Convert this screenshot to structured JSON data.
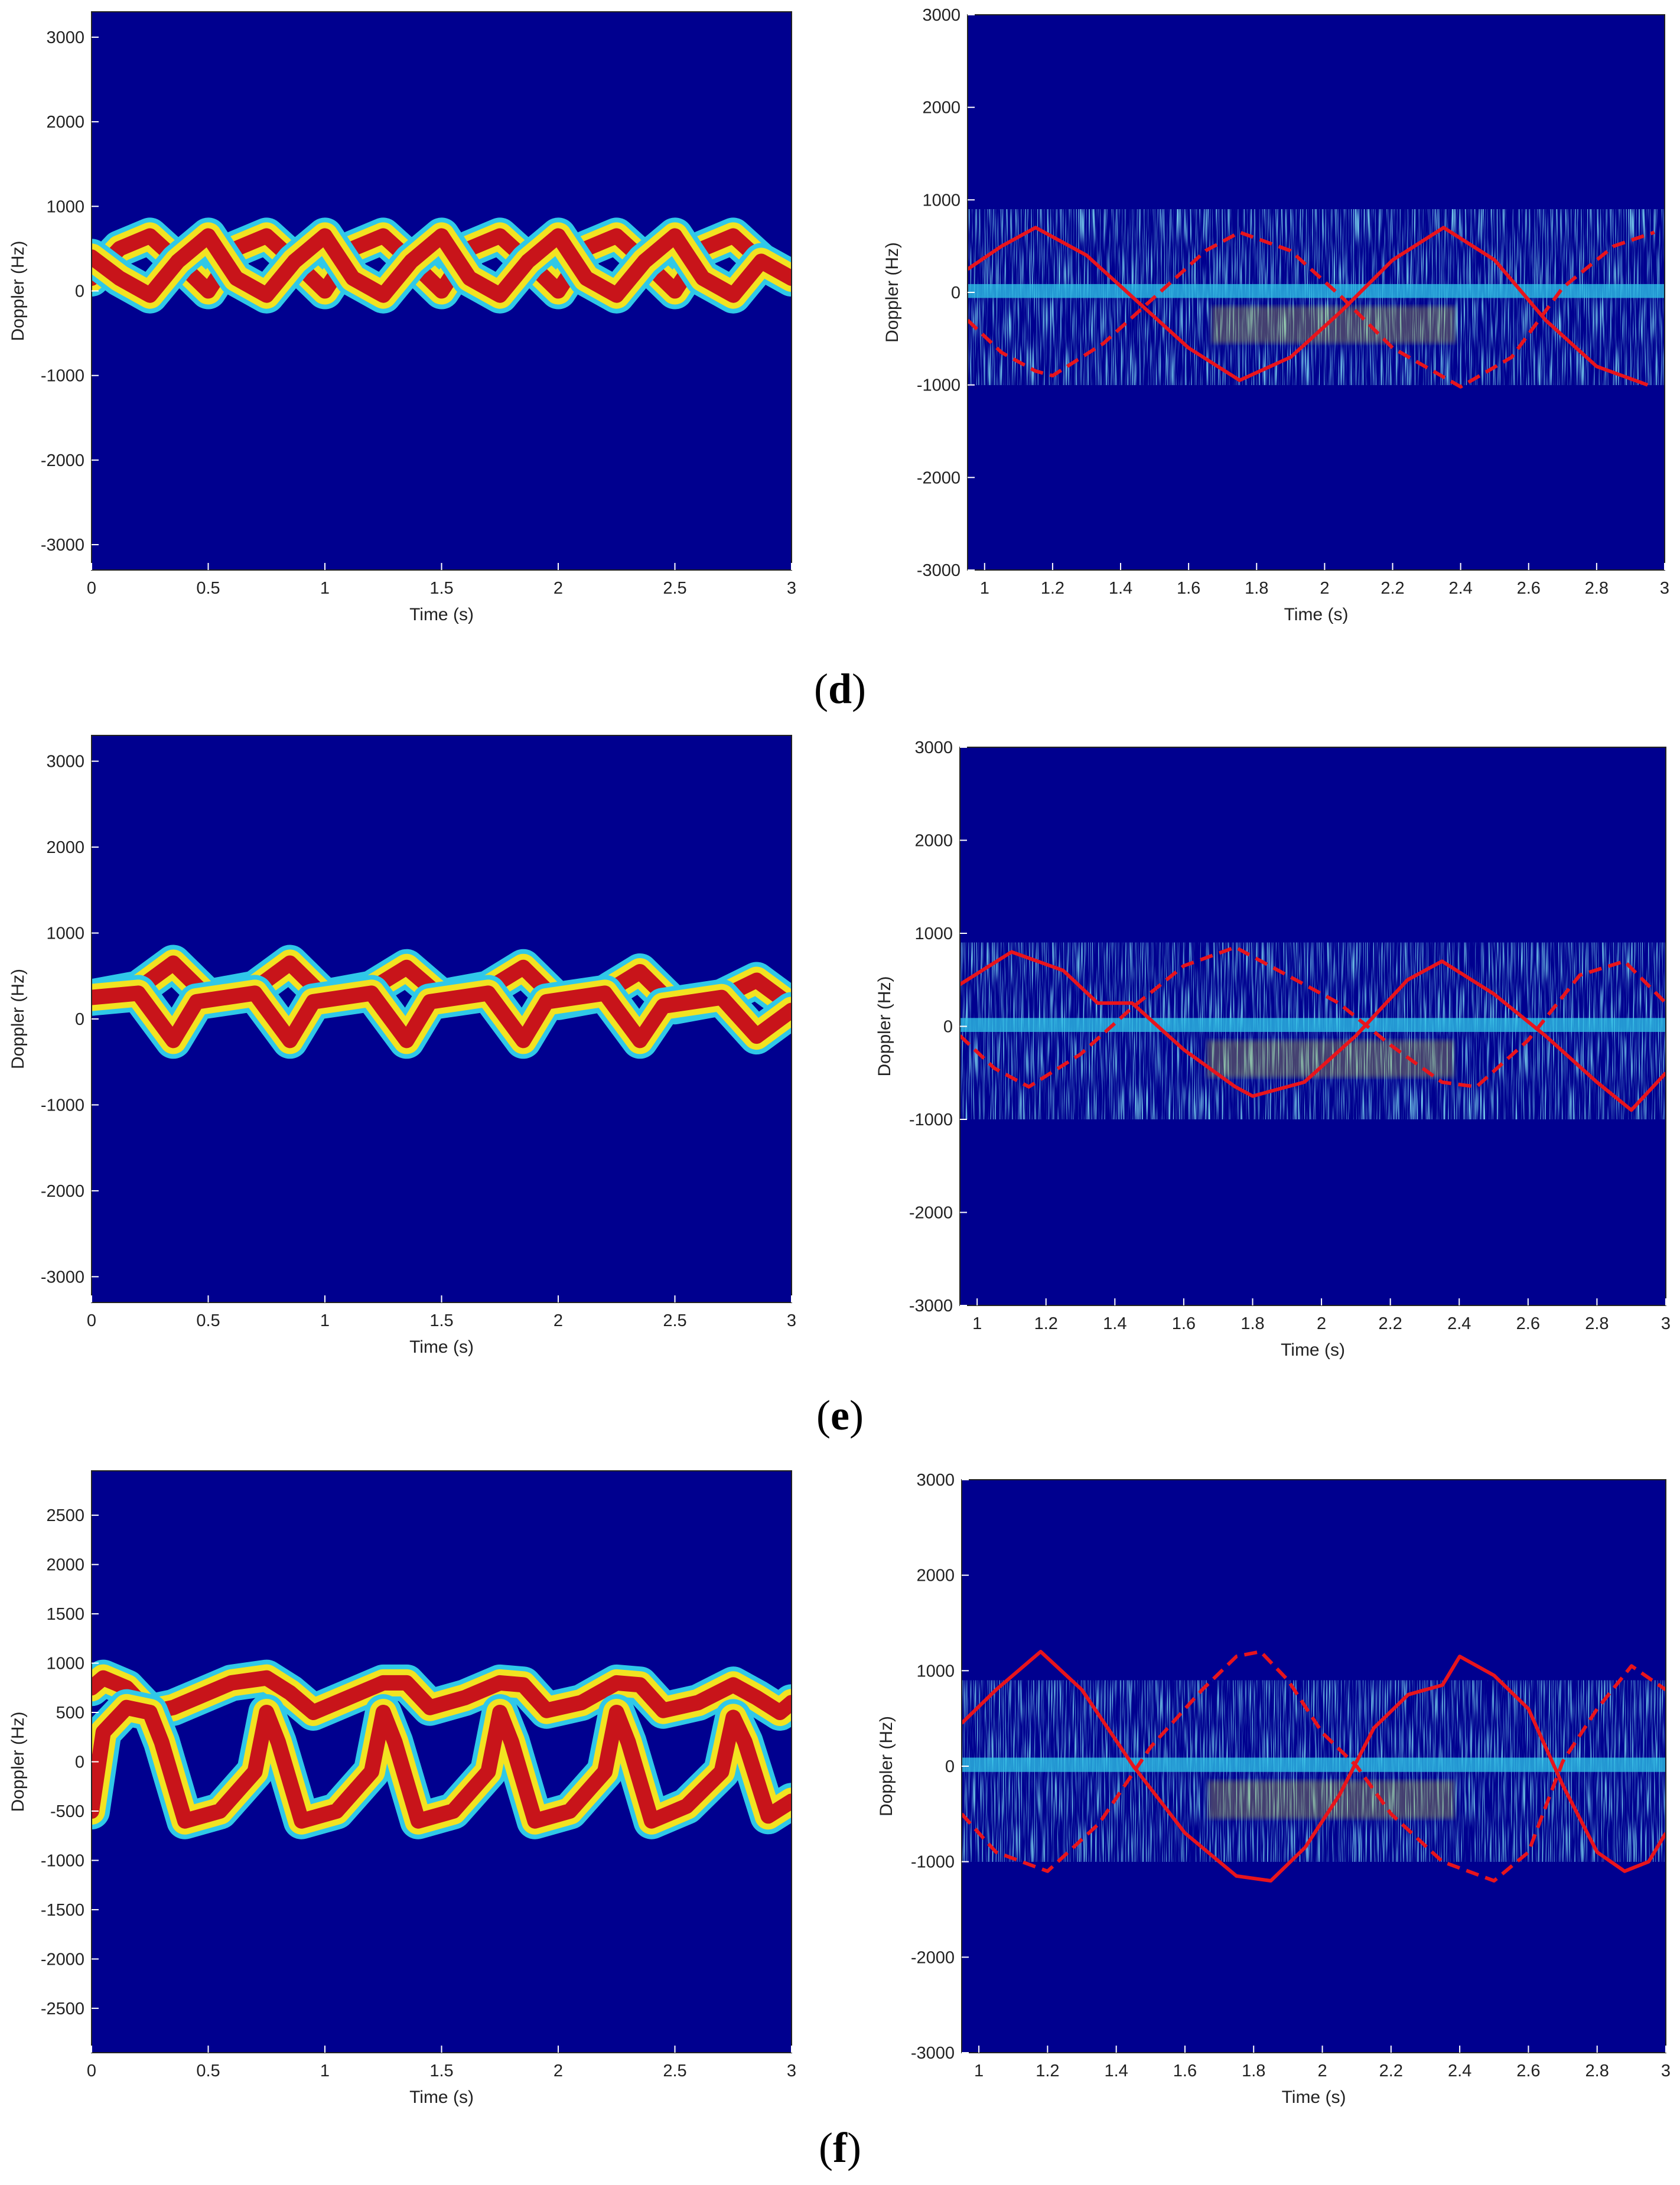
{
  "figure": {
    "rows": [
      {
        "panel_label_open": "(",
        "panel_label_letter": "d",
        "panel_label_close": ")"
      },
      {
        "panel_label_open": "(",
        "panel_label_letter": "e",
        "panel_label_close": ")"
      },
      {
        "panel_label_open": "(",
        "panel_label_letter": "f",
        "panel_label_close": ")"
      }
    ]
  },
  "colors": {
    "background": "#00008f",
    "jet_red": "#c8141a",
    "jet_yellow": "#f2e321",
    "jet_cyan": "#2fc8e8",
    "curve_red": "#e8141c"
  },
  "chart_data": [
    {
      "type": "heatmap",
      "row": "d",
      "position_in_row": "left",
      "xlabel": "Time (s)",
      "ylabel": "Doppler (Hz)",
      "xlim": [
        0,
        3
      ],
      "ylim": [
        -3300,
        3300
      ],
      "xticks": [
        0,
        0.5,
        1,
        1.5,
        2,
        2.5,
        3
      ],
      "xticklabels": [
        "0",
        "0.5",
        "1",
        "1.5",
        "2",
        "2.5",
        "3"
      ],
      "yticks": [
        3000,
        2000,
        1000,
        0,
        -1000,
        -2000,
        -3000
      ],
      "yticklabels": [
        "3000",
        "2000",
        "1000",
        "0",
        "-1000",
        "-2000",
        "-3000"
      ],
      "colormap": "jet",
      "series": [
        {
          "x": [
            0,
            0.12,
            0.25,
            0.37,
            0.5,
            0.62,
            0.75,
            0.87,
            1.0,
            1.12,
            1.25,
            1.37,
            1.5,
            1.62,
            1.75,
            1.87,
            2.0,
            2.12,
            2.25,
            2.37,
            2.5,
            2.62,
            2.75,
            2.87,
            3.0
          ],
          "y": [
            150,
            500,
            650,
            350,
            0,
            500,
            650,
            350,
            0,
            500,
            650,
            350,
            0,
            500,
            650,
            350,
            0,
            500,
            650,
            350,
            0,
            500,
            650,
            350,
            150
          ]
        },
        {
          "x": [
            0,
            0.12,
            0.25,
            0.37,
            0.5,
            0.62,
            0.75,
            0.87,
            1.0,
            1.12,
            1.25,
            1.37,
            1.5,
            1.62,
            1.75,
            1.87,
            2.0,
            2.12,
            2.25,
            2.37,
            2.5,
            2.62,
            2.75,
            2.87,
            3.0
          ],
          "y": [
            400,
            150,
            -50,
            350,
            650,
            150,
            -50,
            350,
            650,
            150,
            -50,
            350,
            650,
            150,
            -50,
            350,
            650,
            150,
            -50,
            350,
            650,
            150,
            -50,
            350,
            150
          ]
        }
      ]
    },
    {
      "type": "heatmap",
      "row": "d",
      "position_in_row": "right",
      "xlabel": "Time (s)",
      "ylabel": "Doppler (Hz)",
      "xlim": [
        0.95,
        3.0
      ],
      "ylim": [
        -3000,
        3000
      ],
      "xticks": [
        1,
        1.2,
        1.4,
        1.6,
        1.8,
        2,
        2.2,
        2.4,
        2.6,
        2.8,
        3
      ],
      "xticklabels": [
        "1",
        "1.2",
        "1.4",
        "1.6",
        "1.8",
        "2",
        "2.2",
        "2.4",
        "2.6",
        "2.8",
        "3"
      ],
      "yticks": [
        3000,
        2000,
        1000,
        0,
        -1000,
        -2000,
        -3000
      ],
      "yticklabels": [
        "3000",
        "2000",
        "1000",
        "0",
        "-1000",
        "-2000",
        "-3000"
      ],
      "colormap": "jet",
      "series": [
        {
          "style": "solid",
          "x": [
            0.95,
            1.05,
            1.15,
            1.3,
            1.45,
            1.6,
            1.75,
            1.9,
            2.05,
            2.2,
            2.35,
            2.5,
            2.65,
            2.8,
            2.95
          ],
          "y": [
            250,
            500,
            700,
            400,
            -100,
            -600,
            -950,
            -700,
            -200,
            350,
            700,
            350,
            -300,
            -800,
            -1000
          ]
        },
        {
          "style": "dashed",
          "x": [
            0.95,
            1.05,
            1.15,
            1.2,
            1.35,
            1.5,
            1.65,
            1.75,
            1.9,
            2.05,
            2.2,
            2.4,
            2.55,
            2.7,
            2.85,
            2.97
          ],
          "y": [
            -300,
            -650,
            -850,
            -900,
            -550,
            -50,
            450,
            650,
            450,
            -50,
            -600,
            -1020,
            -700,
            50,
            500,
            650
          ]
        }
      ]
    },
    {
      "type": "heatmap",
      "row": "e",
      "position_in_row": "left",
      "xlabel": "Time (s)",
      "ylabel": "Doppler (Hz)",
      "xlim": [
        0,
        3
      ],
      "ylim": [
        -3300,
        3300
      ],
      "xticks": [
        0,
        0.5,
        1,
        1.5,
        2,
        2.5,
        3
      ],
      "xticklabels": [
        "0",
        "0.5",
        "1",
        "1.5",
        "2",
        "2.5",
        "3"
      ],
      "yticks": [
        3000,
        2000,
        1000,
        0,
        -1000,
        -2000,
        -3000
      ],
      "yticklabels": [
        "3000",
        "2000",
        "1000",
        "0",
        "-1000",
        "-2000",
        "-3000"
      ],
      "colormap": "jet",
      "series": [
        {
          "x": [
            0,
            0.2,
            0.35,
            0.5,
            0.7,
            0.85,
            1.0,
            1.2,
            1.35,
            1.5,
            1.7,
            1.85,
            2.0,
            2.2,
            2.35,
            2.5,
            2.7,
            2.85,
            3.0
          ],
          "y": [
            250,
            350,
            650,
            250,
            350,
            650,
            250,
            350,
            600,
            250,
            350,
            600,
            200,
            300,
            550,
            150,
            250,
            450,
            150
          ]
        },
        {
          "x": [
            0,
            0.2,
            0.35,
            0.45,
            0.7,
            0.85,
            0.95,
            1.2,
            1.35,
            1.45,
            1.7,
            1.85,
            1.95,
            2.2,
            2.35,
            2.45,
            2.7,
            2.85,
            3.0
          ],
          "y": [
            250,
            300,
            -250,
            200,
            300,
            -250,
            200,
            300,
            -250,
            200,
            300,
            -250,
            200,
            300,
            -250,
            150,
            250,
            -200,
            100
          ]
        }
      ]
    },
    {
      "type": "heatmap",
      "row": "e",
      "position_in_row": "right",
      "xlabel": "Time (s)",
      "ylabel": "Doppler (Hz)",
      "xlim": [
        0.95,
        3.0
      ],
      "ylim": [
        -3000,
        3000
      ],
      "xticks": [
        1,
        1.2,
        1.4,
        1.6,
        1.8,
        2,
        2.2,
        2.4,
        2.6,
        2.8,
        3
      ],
      "xticklabels": [
        "1",
        "1.2",
        "1.4",
        "1.6",
        "1.8",
        "2",
        "2.2",
        "2.4",
        "2.6",
        "2.8",
        "3"
      ],
      "yticks": [
        3000,
        2000,
        1000,
        0,
        -1000,
        -2000,
        -3000
      ],
      "yticklabels": [
        "3000",
        "2000",
        "1000",
        "0",
        "-1000",
        "-2000",
        "-3000"
      ],
      "colormap": "jet",
      "series": [
        {
          "style": "solid",
          "x": [
            0.95,
            1.1,
            1.25,
            1.35,
            1.45,
            1.6,
            1.75,
            1.8,
            1.95,
            2.1,
            2.25,
            2.35,
            2.5,
            2.65,
            2.8,
            2.9,
            3.0
          ],
          "y": [
            450,
            800,
            600,
            250,
            250,
            -250,
            -650,
            -750,
            -600,
            -100,
            500,
            700,
            350,
            -100,
            -600,
            -900,
            -500
          ]
        },
        {
          "style": "dashed",
          "x": [
            0.95,
            1.05,
            1.15,
            1.3,
            1.45,
            1.6,
            1.75,
            1.85,
            1.95,
            2.05,
            2.2,
            2.35,
            2.45,
            2.6,
            2.75,
            2.88,
            3.0
          ],
          "y": [
            -100,
            -450,
            -650,
            -300,
            200,
            650,
            850,
            650,
            450,
            250,
            -200,
            -600,
            -650,
            -150,
            550,
            700,
            250
          ]
        }
      ]
    },
    {
      "type": "heatmap",
      "row": "f",
      "position_in_row": "left",
      "xlabel": "Time (s)",
      "ylabel": "Doppler (Hz)",
      "xlim": [
        0,
        3
      ],
      "ylim": [
        -2950,
        2950
      ],
      "xticks": [
        0,
        0.5,
        1,
        1.5,
        2,
        2.5,
        3
      ],
      "xticklabels": [
        "0",
        "0.5",
        "1",
        "1.5",
        "2",
        "2.5",
        "3"
      ],
      "yticks": [
        2500,
        2000,
        1500,
        1000,
        500,
        0,
        -500,
        -1000,
        -1500,
        -2000,
        -2500
      ],
      "yticklabels": [
        "2500",
        "2000",
        "1500",
        "1000",
        "500",
        "0",
        "-500",
        "-1000",
        "-1500",
        "-2000",
        "-2500"
      ],
      "colormap": "jet",
      "series": [
        {
          "x": [
            0,
            0.05,
            0.15,
            0.25,
            0.35,
            0.45,
            0.6,
            0.75,
            0.85,
            0.95,
            1.1,
            1.25,
            1.35,
            1.45,
            1.6,
            1.75,
            1.85,
            1.95,
            2.1,
            2.25,
            2.35,
            2.45,
            2.6,
            2.75,
            2.85,
            2.95,
            3.0
          ],
          "y": [
            750,
            850,
            750,
            500,
            550,
            650,
            800,
            850,
            700,
            500,
            650,
            800,
            800,
            550,
            650,
            800,
            780,
            520,
            600,
            800,
            780,
            520,
            600,
            780,
            650,
            500,
            600
          ]
        },
        {
          "x": [
            0,
            0.05,
            0.15,
            0.25,
            0.3,
            0.4,
            0.55,
            0.7,
            0.75,
            0.8,
            0.9,
            1.05,
            1.2,
            1.25,
            1.3,
            1.4,
            1.55,
            1.7,
            1.75,
            1.8,
            1.9,
            2.05,
            2.2,
            2.25,
            2.3,
            2.4,
            2.55,
            2.7,
            2.75,
            2.8,
            2.9,
            3.0
          ],
          "y": [
            -500,
            300,
            550,
            500,
            200,
            -600,
            -500,
            -100,
            500,
            200,
            -600,
            -500,
            -100,
            500,
            200,
            -600,
            -500,
            -100,
            500,
            200,
            -600,
            -500,
            -100,
            500,
            200,
            -600,
            -450,
            -100,
            450,
            200,
            -550,
            -400
          ]
        }
      ]
    },
    {
      "type": "heatmap",
      "row": "f",
      "position_in_row": "right",
      "xlabel": "Time (s)",
      "ylabel": "Doppler (Hz)",
      "xlim": [
        0.95,
        3.0
      ],
      "ylim": [
        -3000,
        3000
      ],
      "xticks": [
        1,
        1.2,
        1.4,
        1.6,
        1.8,
        2,
        2.2,
        2.4,
        2.6,
        2.8,
        3
      ],
      "xticklabels": [
        "1",
        "1.2",
        "1.4",
        "1.6",
        "1.8",
        "2",
        "2.2",
        "2.4",
        "2.6",
        "2.8",
        "3"
      ],
      "yticks": [
        3000,
        2000,
        1000,
        0,
        -1000,
        -2000,
        -3000
      ],
      "yticklabels": [
        "3000",
        "2000",
        "1000",
        "0",
        "-1000",
        "-2000",
        "-3000"
      ],
      "colormap": "jet",
      "series": [
        {
          "style": "solid",
          "x": [
            0.95,
            1.05,
            1.18,
            1.3,
            1.45,
            1.6,
            1.75,
            1.85,
            1.95,
            2.05,
            2.15,
            2.25,
            2.35,
            2.4,
            2.5,
            2.6,
            2.7,
            2.8,
            2.88,
            2.95,
            3.0
          ],
          "y": [
            450,
            800,
            1200,
            800,
            0,
            -700,
            -1150,
            -1200,
            -850,
            -300,
            400,
            750,
            850,
            1150,
            950,
            600,
            -200,
            -900,
            -1100,
            -1000,
            -700
          ]
        },
        {
          "style": "dashed",
          "x": [
            0.95,
            1.05,
            1.2,
            1.35,
            1.5,
            1.65,
            1.75,
            1.82,
            1.9,
            2.0,
            2.1,
            2.2,
            2.35,
            2.5,
            2.6,
            2.7,
            2.8,
            2.9,
            3.0
          ],
          "y": [
            -500,
            -900,
            -1100,
            -600,
            200,
            800,
            1150,
            1200,
            900,
            350,
            0,
            -500,
            -1000,
            -1200,
            -900,
            50,
            600,
            1050,
            800
          ]
        }
      ]
    }
  ]
}
